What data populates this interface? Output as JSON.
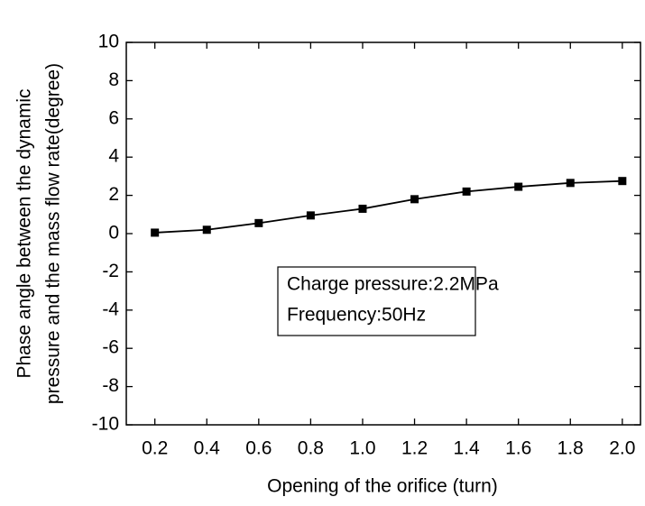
{
  "chart_data": {
    "type": "line",
    "x_label": "Opening of the orifice (turn)",
    "y_label": [
      "Phase angle between the dynamic",
      "pressure and the mass flow rate(degree)"
    ],
    "annotations": [
      "Charge pressure:2.2MPa",
      "Frequency:50Hz"
    ],
    "x": [
      0.2,
      0.4,
      0.6,
      0.8,
      1.0,
      1.2,
      1.4,
      1.6,
      1.8,
      2.0
    ],
    "series": [
      {
        "color": "#000000",
        "values": [
          0.05,
          0.2,
          0.55,
          0.95,
          1.3,
          1.8,
          2.2,
          2.45,
          2.65,
          2.75
        ]
      }
    ],
    "xlim": [
      0.09,
      2.07
    ],
    "xticks": [
      0.2,
      0.4,
      0.6,
      0.8,
      {
        "value": 1,
        "label": "1.0"
      },
      1.2,
      1.4,
      1.6,
      1.8,
      {
        "value": 2,
        "label": "2.0"
      }
    ],
    "ylim": [
      -10,
      10
    ],
    "yticks": [
      -10,
      -8,
      -6,
      -4,
      -2,
      0,
      2,
      4,
      6,
      8,
      10
    ]
  }
}
